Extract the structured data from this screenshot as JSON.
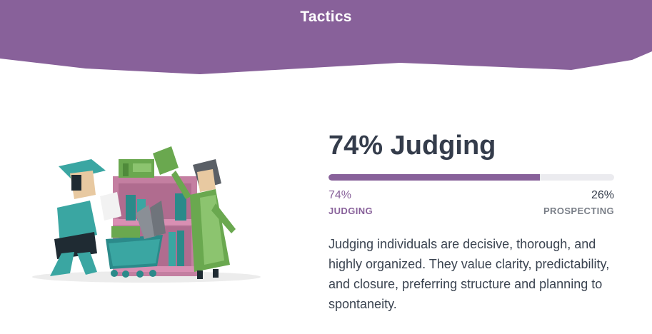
{
  "header": {
    "title": "Tactics",
    "background_color": "#88619a"
  },
  "trait": {
    "percent_label": "74%",
    "name": "Judging",
    "fill_fraction": 0.74,
    "left": {
      "percent": "74%",
      "label": "JUDGING"
    },
    "right": {
      "percent": "26%",
      "label": "PROSPECTING"
    },
    "description": "Judging individuals are decisive, thorough, and highly organized. They value clarity, predictability, and closure, preferring structure and planning to spontaneity."
  },
  "illustration": {
    "icon": "shopping-shelf-illustration"
  },
  "colors": {
    "accent": "#88619a",
    "track": "#ebebef",
    "heading": "#343c4b",
    "muted": "#7a7f88"
  }
}
